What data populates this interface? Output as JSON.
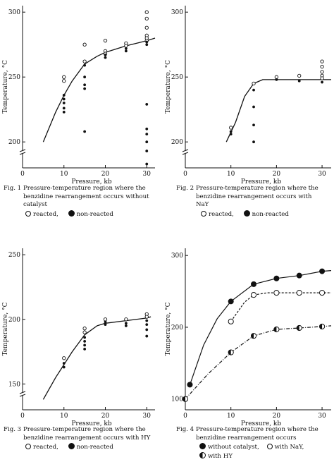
{
  "chart_data": [
    {
      "id": "fig1",
      "type": "scatter",
      "ylabel": "Temperature, °C",
      "xlabel": "Pressure, kb",
      "xticks": [
        0,
        10,
        20,
        30
      ],
      "yticks": [
        200,
        250,
        300
      ],
      "xlim": [
        0,
        32
      ],
      "ylim": [
        180,
        305
      ],
      "y_axis_break": true,
      "curve": {
        "style": "solid",
        "x": [
          5,
          8,
          10,
          12,
          15,
          18,
          20,
          25,
          30,
          32
        ],
        "y": [
          200,
          223,
          236,
          247,
          260,
          266,
          269,
          274,
          278,
          280
        ]
      },
      "series": [
        {
          "name": "reacted",
          "marker": "open",
          "points": [
            [
              10,
              250
            ],
            [
              10,
              247
            ],
            [
              15,
              275
            ],
            [
              15,
              262
            ],
            [
              20,
              278
            ],
            [
              20,
              270
            ],
            [
              20,
              268
            ],
            [
              25,
              276
            ],
            [
              25,
              274
            ],
            [
              30,
              300
            ],
            [
              30,
              295
            ],
            [
              30,
              288
            ],
            [
              30,
              282
            ],
            [
              30,
              280
            ],
            [
              30,
              278
            ]
          ]
        },
        {
          "name": "non-reacted",
          "marker": "filled",
          "points": [
            [
              10,
              236
            ],
            [
              10,
              233
            ],
            [
              10,
              230
            ],
            [
              10,
              226
            ],
            [
              10,
              223
            ],
            [
              15,
              259
            ],
            [
              15,
              250
            ],
            [
              15,
              244
            ],
            [
              15,
              241
            ],
            [
              15,
              208
            ],
            [
              20,
              267
            ],
            [
              20,
              265
            ],
            [
              25,
              272
            ],
            [
              25,
              270
            ],
            [
              30,
              277
            ],
            [
              30,
              275
            ],
            [
              30,
              229
            ],
            [
              30,
              210
            ],
            [
              30,
              206
            ],
            [
              30,
              200
            ],
            [
              30,
              193
            ],
            [
              30,
              183
            ]
          ]
        }
      ],
      "caption_lines": [
        "Pressure-temperature region where the",
        "benzidine rearrangement occurs without",
        "catalyst"
      ],
      "fig_label": "Fig. 1",
      "legend": [
        {
          "symbol": "open",
          "label": "reacted,"
        },
        {
          "symbol": "filled",
          "label": "non-reacted"
        }
      ]
    },
    {
      "id": "fig2",
      "type": "scatter",
      "ylabel": "Temperature, °C",
      "xlabel": "Pressure, kb",
      "xticks": [
        0,
        10,
        20,
        30
      ],
      "yticks": [
        200,
        250,
        300
      ],
      "xlim": [
        0,
        32
      ],
      "ylim": [
        180,
        305
      ],
      "y_axis_break": true,
      "curve": {
        "style": "solid",
        "x": [
          9,
          11,
          13,
          15,
          17,
          20,
          25,
          30,
          32
        ],
        "y": [
          200,
          215,
          235,
          245,
          248,
          248,
          248,
          248,
          248
        ]
      },
      "series": [
        {
          "name": "reacted",
          "marker": "open",
          "points": [
            [
              10,
              211
            ],
            [
              15,
              245
            ],
            [
              20,
              250
            ],
            [
              25,
              251
            ],
            [
              30,
              262
            ],
            [
              30,
              258
            ],
            [
              30,
              254
            ],
            [
              30,
              251
            ],
            [
              30,
              249
            ]
          ]
        },
        {
          "name": "non-reacted",
          "marker": "filled",
          "points": [
            [
              10,
              208
            ],
            [
              10,
              206
            ],
            [
              15,
              240
            ],
            [
              15,
              227
            ],
            [
              15,
              213
            ],
            [
              15,
              200
            ],
            [
              20,
              248
            ],
            [
              25,
              247
            ],
            [
              30,
              246
            ]
          ]
        }
      ],
      "caption_lines": [
        "Pressure-temperature region where the",
        "benzidine rearrangement occurs with",
        "NaY"
      ],
      "fig_label": "Fig. 2",
      "legend": [
        {
          "symbol": "open",
          "label": "reacted,"
        },
        {
          "symbol": "filled",
          "label": "non-reacted"
        }
      ]
    },
    {
      "id": "fig3",
      "type": "scatter",
      "ylabel": "Temperature, °C",
      "xlabel": "Pressure, kb",
      "xticks": [
        0,
        10,
        20,
        30
      ],
      "yticks": [
        150,
        200,
        250
      ],
      "xlim": [
        0,
        32
      ],
      "ylim": [
        130,
        255
      ],
      "y_axis_break": true,
      "curve": {
        "style": "solid",
        "x": [
          5,
          8,
          10,
          12,
          15,
          18,
          20,
          25,
          30,
          31
        ],
        "y": [
          138,
          155,
          165,
          175,
          188,
          195,
          197,
          199,
          201,
          202
        ]
      },
      "series": [
        {
          "name": "reacted",
          "marker": "open",
          "points": [
            [
              10,
              170
            ],
            [
              15,
              193
            ],
            [
              15,
              190
            ],
            [
              20,
              200
            ],
            [
              25,
              200
            ],
            [
              30,
              204
            ],
            [
              30,
              202
            ]
          ]
        },
        {
          "name": "non-reacted",
          "marker": "filled",
          "points": [
            [
              10,
              166
            ],
            [
              10,
              163
            ],
            [
              15,
              186
            ],
            [
              15,
              183
            ],
            [
              15,
              180
            ],
            [
              15,
              177
            ],
            [
              20,
              198
            ],
            [
              20,
              196
            ],
            [
              25,
              197
            ],
            [
              25,
              195
            ],
            [
              30,
              199
            ],
            [
              30,
              196
            ],
            [
              30,
              192
            ],
            [
              30,
              187
            ]
          ]
        }
      ],
      "caption_lines": [
        "Pressure-temperature region where the",
        "benzidine rearrangement occurs with HY"
      ],
      "fig_label": "Fig. 3",
      "legend": [
        {
          "symbol": "open",
          "label": "reacted,"
        },
        {
          "symbol": "filled",
          "label": "non-reacted"
        }
      ]
    },
    {
      "id": "fig4",
      "type": "line",
      "ylabel": "Temperature, °C",
      "xlabel": "Pressure, kb",
      "xticks": [
        0,
        10,
        20,
        30
      ],
      "yticks": [
        100,
        200,
        300
      ],
      "xlim": [
        0,
        32
      ],
      "ylim": [
        85,
        310
      ],
      "y_axis_break": false,
      "series": [
        {
          "name": "without catalyst,",
          "marker": "filled",
          "style": "solid",
          "x": [
            1,
            10,
            15,
            20,
            25,
            30
          ],
          "y": [
            120,
            236,
            260,
            268,
            272,
            278
          ],
          "curve_x": [
            1,
            4,
            7,
            10,
            15,
            20,
            25,
            30,
            32
          ],
          "curve_y": [
            120,
            175,
            212,
            236,
            260,
            268,
            272,
            278,
            279
          ]
        },
        {
          "name": "with NaY,",
          "marker": "open",
          "style": "dashed",
          "x": [
            10,
            15,
            20,
            25,
            30
          ],
          "y": [
            208,
            245,
            248,
            248,
            248
          ],
          "curve_x": [
            10,
            13,
            15,
            18,
            20,
            25,
            30,
            32
          ],
          "curve_y": [
            208,
            235,
            245,
            248,
            248,
            248,
            248,
            248
          ]
        },
        {
          "name": "with HY",
          "marker": "half",
          "style": "dashdot",
          "x": [
            0,
            10,
            15,
            20,
            25,
            30
          ],
          "y": [
            100,
            165,
            188,
            197,
            199,
            201
          ],
          "curve_x": [
            0,
            5,
            10,
            15,
            20,
            25,
            30,
            32
          ],
          "curve_y": [
            100,
            135,
            165,
            188,
            197,
            199,
            201,
            202
          ]
        }
      ],
      "caption_lines": [
        "Pressure-temperature region where the",
        "benzidine rearrangement occurs"
      ],
      "fig_label": "Fig. 4",
      "legend": [
        {
          "symbol": "filled",
          "label": "without catalyst,"
        },
        {
          "symbol": "open",
          "label": "with NaY,"
        },
        {
          "symbol": "half",
          "label": "with HY"
        }
      ]
    }
  ]
}
